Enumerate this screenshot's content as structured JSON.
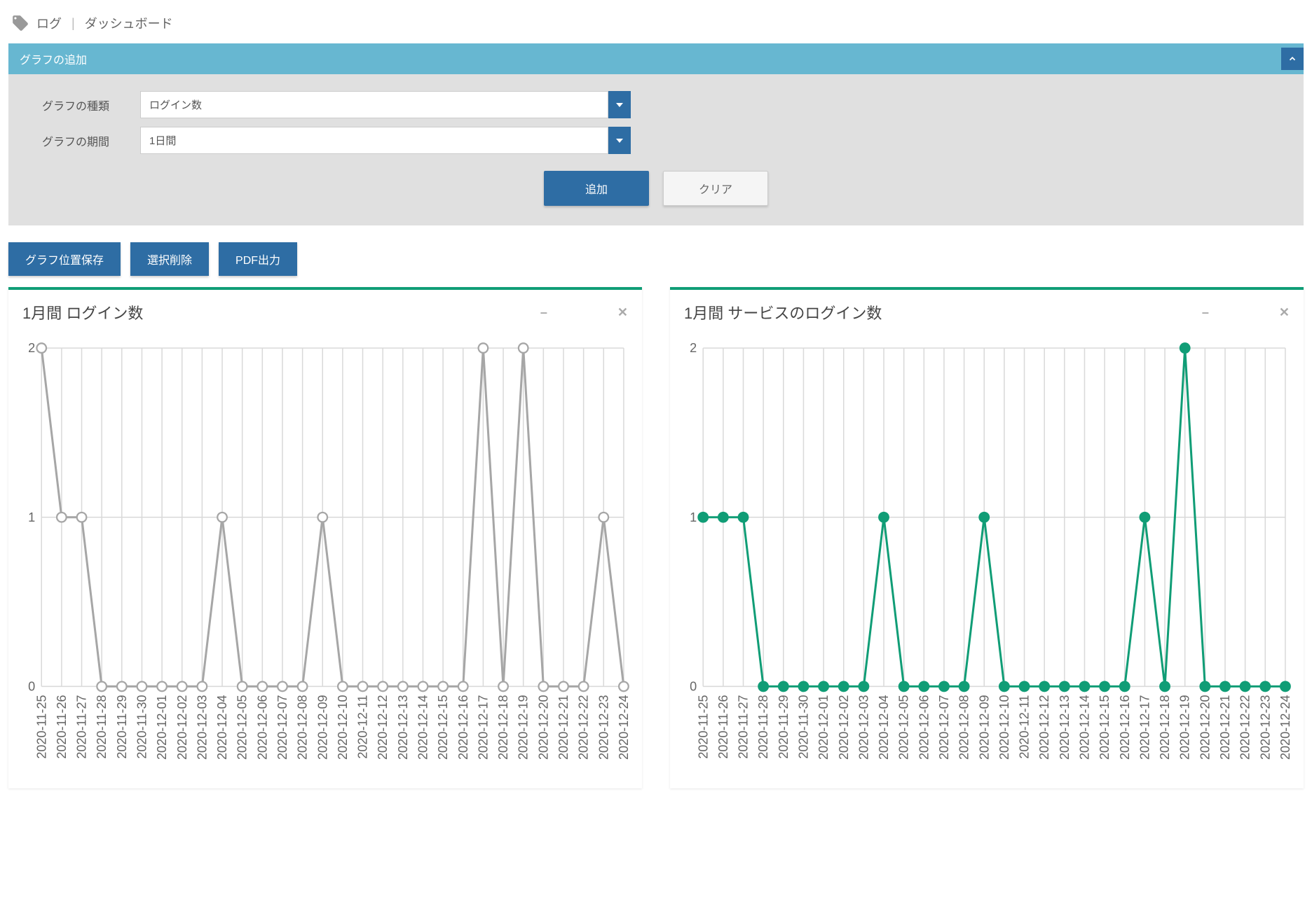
{
  "breadcrumb": {
    "item1": "ログ",
    "sep": "|",
    "item2": "ダッシュボード"
  },
  "panel": {
    "title": "グラフの追加",
    "type_label": "グラフの種類",
    "type_value": "ログイン数",
    "period_label": "グラフの期間",
    "period_value": "1日間",
    "add_btn": "追加",
    "clear_btn": "クリア"
  },
  "actions": {
    "save_pos": "グラフ位置保存",
    "delete_sel": "選択削除",
    "pdf": "PDF出力"
  },
  "charts": [
    {
      "title": "1月間 ログイン数",
      "type": "line",
      "line_color": "#a6a6a6",
      "marker_fill": "#ffffff",
      "marker_stroke": "#a6a6a6",
      "marker_radius": 4.5,
      "line_width": 2,
      "background": "#ffffff",
      "grid_color": "#d9d9d9",
      "ylim": [
        0,
        2
      ],
      "ytick_step": 1,
      "x_labels": [
        "2020-11-25",
        "2020-11-26",
        "2020-11-27",
        "2020-11-28",
        "2020-11-29",
        "2020-11-30",
        "2020-12-01",
        "2020-12-02",
        "2020-12-03",
        "2020-12-04",
        "2020-12-05",
        "2020-12-06",
        "2020-12-07",
        "2020-12-08",
        "2020-12-09",
        "2020-12-10",
        "2020-12-11",
        "2020-12-12",
        "2020-12-13",
        "2020-12-14",
        "2020-12-15",
        "2020-12-16",
        "2020-12-17",
        "2020-12-18",
        "2020-12-19",
        "2020-12-20",
        "2020-12-21",
        "2020-12-22",
        "2020-12-23",
        "2020-12-24"
      ],
      "values": [
        2,
        1,
        1,
        0,
        0,
        0,
        0,
        0,
        0,
        1,
        0,
        0,
        0,
        0,
        1,
        0,
        0,
        0,
        0,
        0,
        0,
        0,
        2,
        0,
        2,
        0,
        0,
        0,
        1,
        0
      ]
    },
    {
      "title": "1月間 サービスのログイン数",
      "type": "line",
      "line_color": "#109d76",
      "marker_fill": "#109d76",
      "marker_stroke": "#109d76",
      "marker_radius": 4.5,
      "line_width": 2,
      "background": "#ffffff",
      "grid_color": "#d9d9d9",
      "ylim": [
        0,
        2
      ],
      "ytick_step": 1,
      "x_labels": [
        "2020-11-25",
        "2020-11-26",
        "2020-11-27",
        "2020-11-28",
        "2020-11-29",
        "2020-11-30",
        "2020-12-01",
        "2020-12-02",
        "2020-12-03",
        "2020-12-04",
        "2020-12-05",
        "2020-12-06",
        "2020-12-07",
        "2020-12-08",
        "2020-12-09",
        "2020-12-10",
        "2020-12-11",
        "2020-12-12",
        "2020-12-13",
        "2020-12-14",
        "2020-12-15",
        "2020-12-16",
        "2020-12-17",
        "2020-12-18",
        "2020-12-19",
        "2020-12-20",
        "2020-12-21",
        "2020-12-22",
        "2020-12-23",
        "2020-12-24"
      ],
      "values": [
        1,
        1,
        1,
        0,
        0,
        0,
        0,
        0,
        0,
        1,
        0,
        0,
        0,
        0,
        1,
        0,
        0,
        0,
        0,
        0,
        0,
        0,
        1,
        0,
        2,
        0,
        0,
        0,
        0,
        0
      ]
    }
  ]
}
